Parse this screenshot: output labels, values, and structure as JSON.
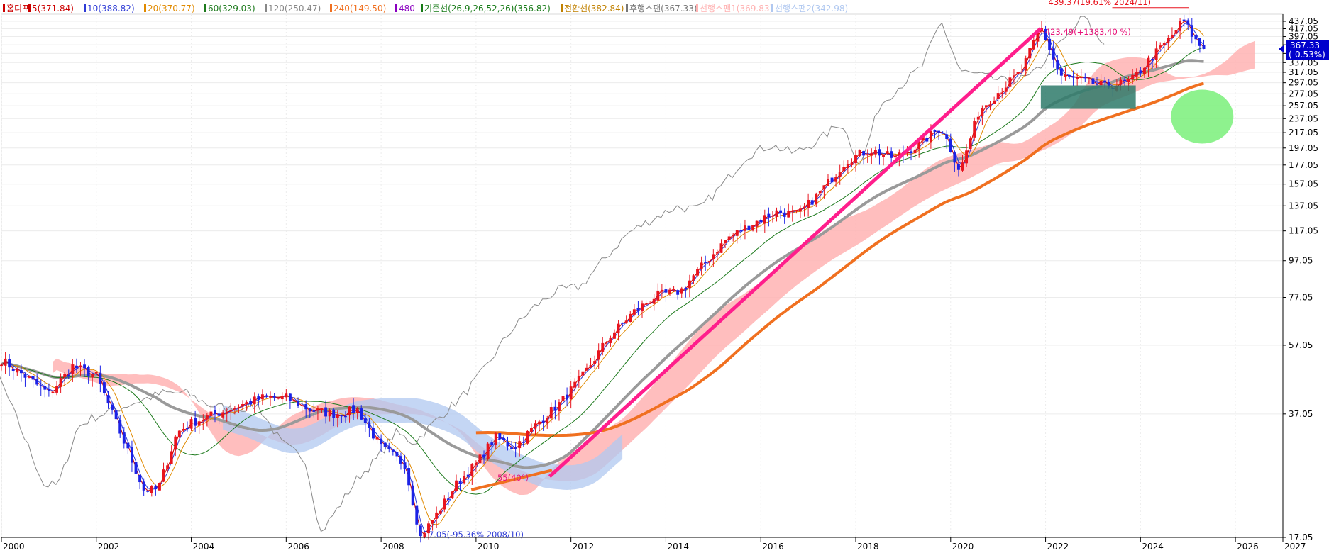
{
  "legend": [
    {
      "label": "홈디포",
      "color": "#cc0000"
    },
    {
      "label": "5(371.84)",
      "color": "#cc0000"
    },
    {
      "label": "10(388.82)",
      "color": "#2e3bd6"
    },
    {
      "label": "20(370.77)",
      "color": "#e08a00"
    },
    {
      "label": "60(329.03)",
      "color": "#1d7a1d"
    },
    {
      "label": "120(250.47)",
      "color": "#888888"
    },
    {
      "label": "240(149.50)",
      "color": "#f07020"
    },
    {
      "label": "480",
      "color": "#8a00c0"
    },
    {
      "label": "기준선(26,9,26,52,26)(356.82)",
      "color": "#167a16"
    },
    {
      "label": "전환선(382.84)",
      "color": "#c08000"
    },
    {
      "label": "후행스팬(367.33)",
      "color": "#777777"
    },
    {
      "label": "선행스팬1(369.83)",
      "color": "#ffb3b3"
    },
    {
      "label": "선행스팬2(342.98)",
      "color": "#b0c8f0"
    }
  ],
  "price_box": {
    "value": "367.33",
    "change": "(-0.53%)"
  },
  "annotations": {
    "high": "439.37(19.61% 2024/11)",
    "peak": "423.49(+1383.40 %)",
    "low": "17.05(-95.36% 2008/10)",
    "angle": "55(40°)"
  },
  "colors": {
    "up": "#e8141e",
    "down": "#1b22e6",
    "ma5": "#cc0000",
    "ma10": "#2e3bd6",
    "ma20": "#e08a00",
    "ma60": "#1d7a1d",
    "ma120": "#9a9a9a",
    "ma240": "#f07020",
    "lagging": "#8a8a8a",
    "span1": "#ffb3b3",
    "span2": "#b0c8f0",
    "trend_pink": "#ff1e8c",
    "trend_orange": "#f07020",
    "box": "#2e7a6a",
    "ellipse": "#7af07a"
  },
  "chart_data": {
    "type": "candlestick",
    "ylabel": "",
    "ylim": [
      17.05,
      437.05
    ],
    "yscale": "log",
    "x_ticks": [
      "2000",
      "2002",
      "2004",
      "2006",
      "2008",
      "2010",
      "2012",
      "2014",
      "2016",
      "2018",
      "2020",
      "2022",
      "2024",
      "2026",
      "2027"
    ],
    "y_ticks": [
      437.05,
      417.05,
      397.05,
      377.05,
      357.05,
      337.05,
      317.05,
      297.05,
      277.05,
      257.05,
      237.05,
      217.05,
      197.05,
      177.05,
      157.05,
      137.05,
      117.05,
      97.05,
      77.05,
      57.05,
      37.05,
      17.05
    ],
    "price_keypoints": [
      [
        2000.0,
        52
      ],
      [
        2000.5,
        47
      ],
      [
        2001.0,
        42
      ],
      [
        2001.5,
        50
      ],
      [
        2002.0,
        47
      ],
      [
        2002.5,
        33
      ],
      [
        2003.0,
        23
      ],
      [
        2003.3,
        23
      ],
      [
        2003.7,
        33
      ],
      [
        2004.0,
        35
      ],
      [
        2004.5,
        37
      ],
      [
        2005.0,
        39
      ],
      [
        2005.5,
        41
      ],
      [
        2006.0,
        41
      ],
      [
        2006.5,
        38
      ],
      [
        2007.0,
        37
      ],
      [
        2007.5,
        38
      ],
      [
        2008.0,
        30
      ],
      [
        2008.5,
        27
      ],
      [
        2008.83,
        17.05
      ],
      [
        2009.2,
        20
      ],
      [
        2009.6,
        24
      ],
      [
        2010.0,
        27
      ],
      [
        2010.4,
        32
      ],
      [
        2010.8,
        30
      ],
      [
        2011.3,
        35
      ],
      [
        2011.8,
        40
      ],
      [
        2012.3,
        48
      ],
      [
        2012.8,
        60
      ],
      [
        2013.3,
        70
      ],
      [
        2013.8,
        78
      ],
      [
        2014.3,
        80
      ],
      [
        2014.8,
        95
      ],
      [
        2015.3,
        112
      ],
      [
        2015.8,
        122
      ],
      [
        2016.3,
        132
      ],
      [
        2016.8,
        130
      ],
      [
        2017.3,
        152
      ],
      [
        2017.8,
        182
      ],
      [
        2018.3,
        195
      ],
      [
        2018.8,
        185
      ],
      [
        2019.3,
        200
      ],
      [
        2019.8,
        225
      ],
      [
        2020.2,
        170
      ],
      [
        2020.6,
        250
      ],
      [
        2021.0,
        280
      ],
      [
        2021.5,
        320
      ],
      [
        2021.9,
        423.49
      ],
      [
        2022.3,
        310
      ],
      [
        2022.8,
        300
      ],
      [
        2023.3,
        290
      ],
      [
        2023.8,
        300
      ],
      [
        2024.2,
        345
      ],
      [
        2024.6,
        390
      ],
      [
        2024.9,
        439.37
      ],
      [
        2025.2,
        380
      ],
      [
        2025.35,
        367.33
      ]
    ]
  }
}
